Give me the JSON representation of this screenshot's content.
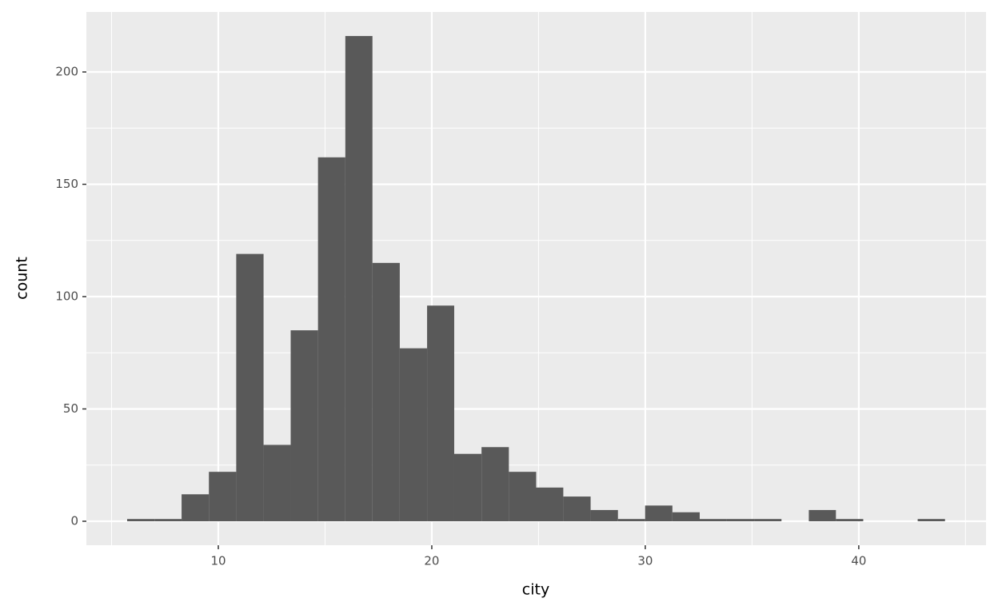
{
  "chart_data": {
    "type": "histogram",
    "x_label": "city",
    "y_label": "count",
    "bins": [
      5.73,
      7.01,
      8.28,
      9.56,
      10.84,
      12.12,
      13.39,
      14.67,
      15.95,
      17.22,
      18.5,
      19.78,
      21.05,
      22.33,
      23.61,
      24.89,
      26.16,
      27.44,
      28.72,
      29.99,
      31.27,
      32.55,
      33.82,
      35.1,
      36.38,
      37.66,
      38.93,
      40.21,
      41.49,
      42.76,
      44.04
    ],
    "values": [
      1,
      1,
      12,
      22,
      119,
      34,
      85,
      162,
      216,
      115,
      77,
      96,
      30,
      33,
      22,
      15,
      11,
      5,
      1,
      7,
      4,
      1,
      1,
      1,
      0,
      5,
      1,
      0,
      0,
      1
    ],
    "color": "#595959",
    "xlim": [
      3.82,
      45.96
    ],
    "xticks": [
      10,
      20,
      30,
      40
    ],
    "xminor": [
      5,
      15,
      25,
      35,
      45
    ],
    "ylim": [
      -10.68,
      226.7
    ],
    "yticks": [
      0,
      50,
      100,
      150,
      200
    ],
    "yminor": [
      25,
      75,
      125,
      175
    ],
    "grid": true
  }
}
